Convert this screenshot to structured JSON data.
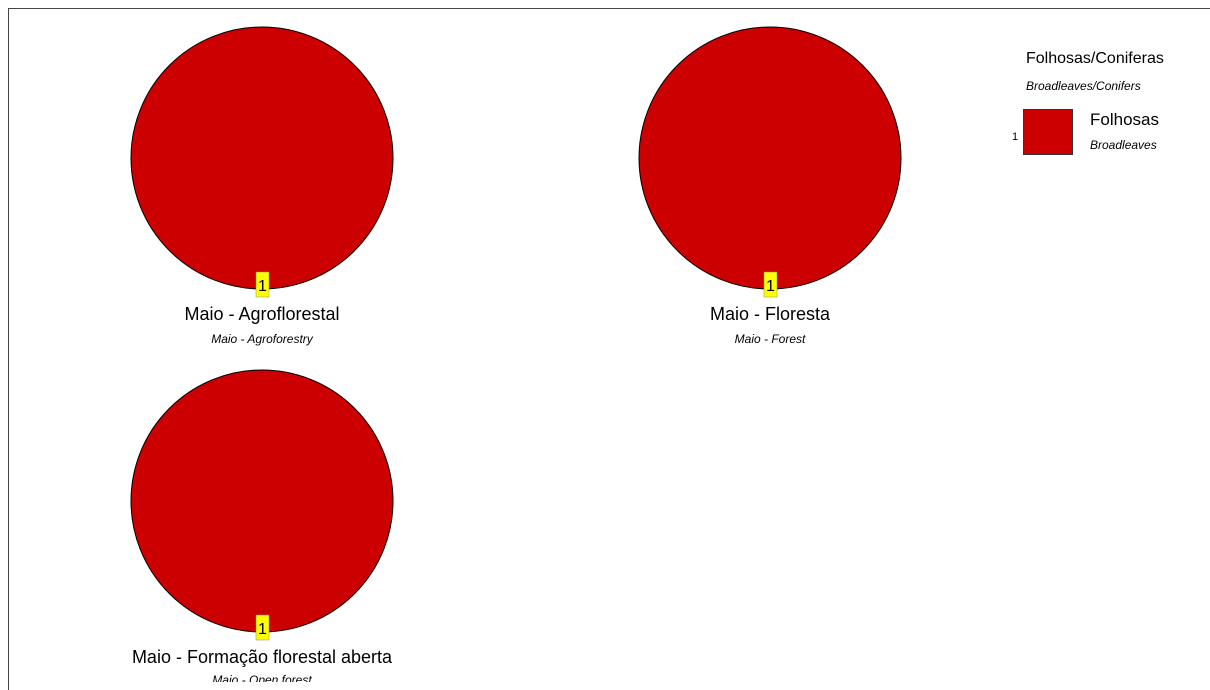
{
  "chart_data": {
    "type": "pie",
    "colors": {
      "Folhosas": "#cc0000",
      "label_box": "#ffff00"
    },
    "legend": {
      "title": "Folhosas/Coniferas",
      "subtitle": "Broadleaves/Conifers",
      "position": "top-right",
      "items": [
        {
          "number": "1",
          "label": "Folhosas",
          "sublabel": "Broadleaves",
          "color": "#cc0000"
        }
      ]
    },
    "charts": [
      {
        "title": "Maio - Agroflorestal",
        "subtitle": "Maio - Agroforestry",
        "slices": [
          {
            "category": "Folhosas",
            "value": 100,
            "label": "1"
          }
        ]
      },
      {
        "title": "Maio - Floresta",
        "subtitle": "Maio - Forest",
        "slices": [
          {
            "category": "Folhosas",
            "value": 100,
            "label": "1"
          }
        ]
      },
      {
        "title": "Maio - Formação florestal aberta",
        "subtitle": "Maio - Open forest",
        "slices": [
          {
            "category": "Folhosas",
            "value": 100,
            "label": "1"
          }
        ]
      }
    ]
  }
}
